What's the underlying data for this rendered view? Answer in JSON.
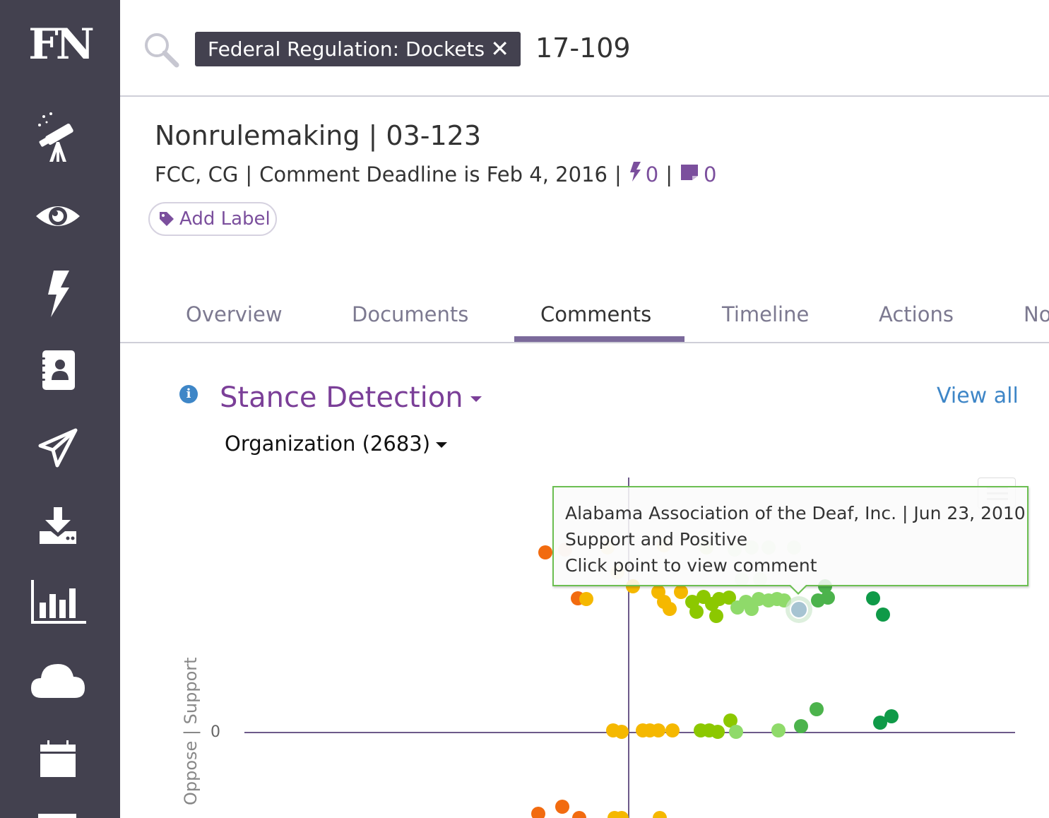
{
  "app": {
    "logo": "FN"
  },
  "sidebar": {
    "items": [
      {
        "name": "telescope-icon"
      },
      {
        "name": "eye-icon"
      },
      {
        "name": "lightning-icon"
      },
      {
        "name": "contact-book-icon"
      },
      {
        "name": "paper-plane-icon"
      },
      {
        "name": "download-icon"
      },
      {
        "name": "bar-chart-icon"
      },
      {
        "name": "cloud-icon"
      },
      {
        "name": "calendar-icon"
      }
    ]
  },
  "search": {
    "chip_bold": "Federal Regulation:",
    "chip_value": " Dockets",
    "chip_close": "✕",
    "query": "17-109"
  },
  "header": {
    "title": "Nonrulemaking | 03-123",
    "agencies": "FCC, CG",
    "deadline": "Comment Deadline is Feb 4, 2016",
    "sep": "|",
    "alerts_count": "0",
    "notes_count": "0",
    "add_label": "Add Label"
  },
  "tabs": [
    {
      "label": "Overview"
    },
    {
      "label": "Documents"
    },
    {
      "label": "Comments",
      "active": true
    },
    {
      "label": "Timeline"
    },
    {
      "label": "Actions"
    },
    {
      "label": "No"
    }
  ],
  "section": {
    "title": "Stance Detection",
    "view_all": "View all",
    "group_select": "Organization (2683)"
  },
  "chart_data": {
    "type": "scatter",
    "ylabel": "Oppose | Support",
    "y_ticks": [
      "0"
    ],
    "tooltip": {
      "line1": "Alabama Association of the Deaf, Inc. | Jun 23, 2010",
      "line2": "Support and Positive",
      "line3": "Click point to view comment"
    },
    "colors": {
      "oppose": "#f26b0f",
      "neutral_low": "#f5b800",
      "mid": "#8cc800",
      "light": "#8fda6a",
      "support": "#4cb34c",
      "strong": "#0f9a48",
      "hover": "#a7c4d2"
    }
  }
}
